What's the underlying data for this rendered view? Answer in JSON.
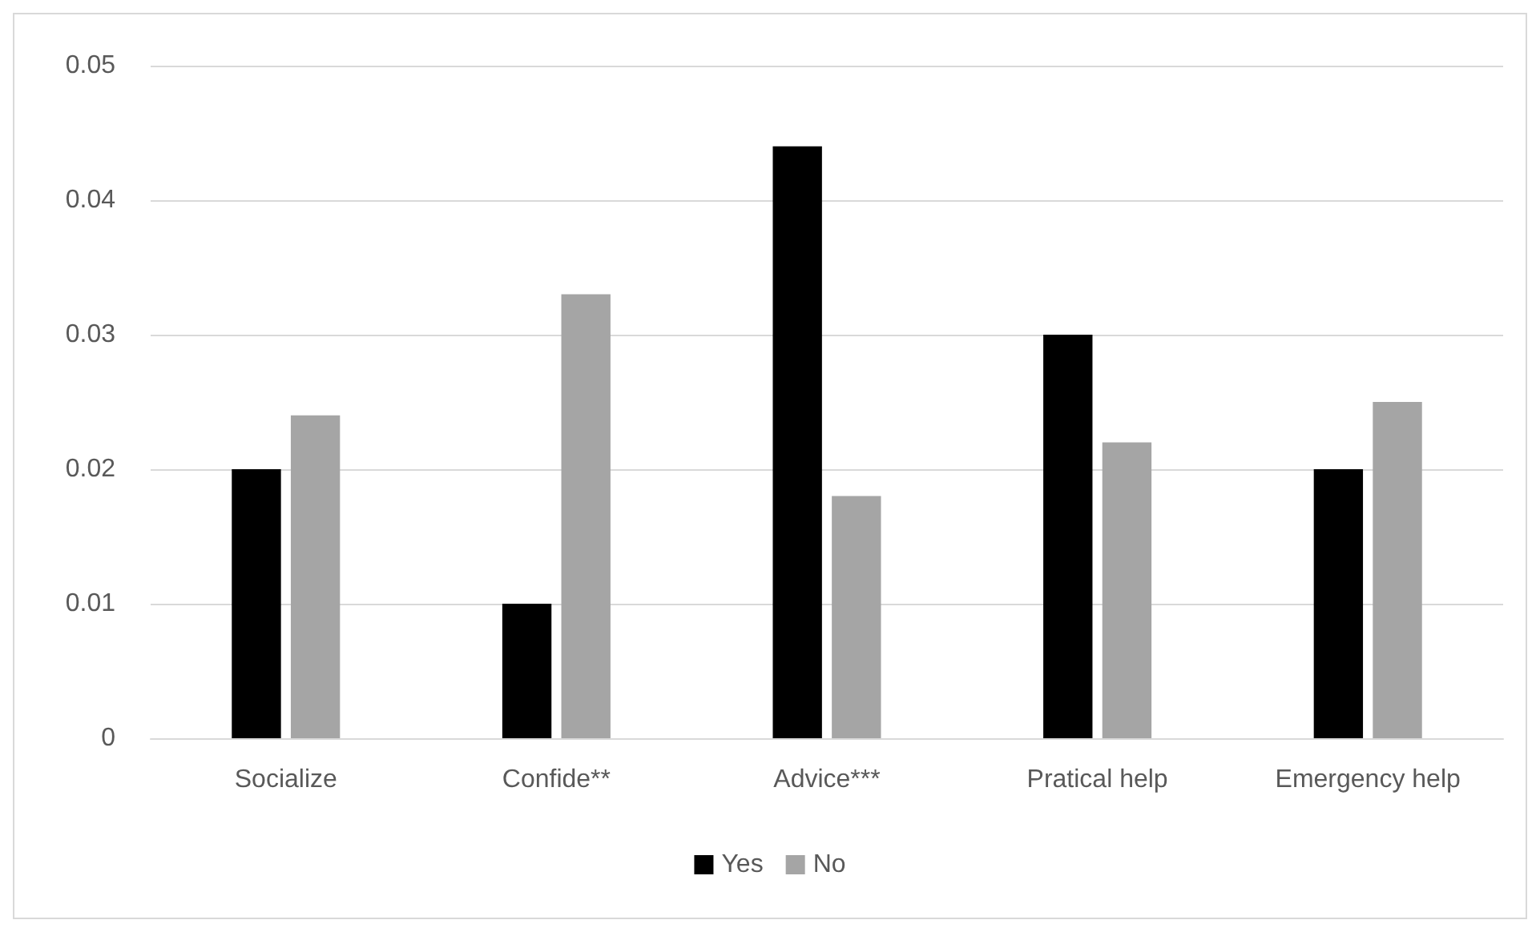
{
  "chart_data": {
    "type": "bar",
    "categories": [
      "Socialize",
      "Confide**",
      "Advice***",
      "Pratical help",
      "Emergency help"
    ],
    "series": [
      {
        "name": "Yes",
        "color": "#000000",
        "values": [
          0.02,
          0.01,
          0.044,
          0.03,
          0.02
        ]
      },
      {
        "name": "No",
        "color": "#a5a5a5",
        "values": [
          0.024,
          0.033,
          0.018,
          0.022,
          0.025
        ]
      }
    ],
    "ylim": [
      0,
      0.05
    ],
    "yticks": [
      0,
      0.01,
      0.02,
      0.03,
      0.04,
      0.05
    ],
    "grid": "y",
    "legend": "bottom"
  }
}
